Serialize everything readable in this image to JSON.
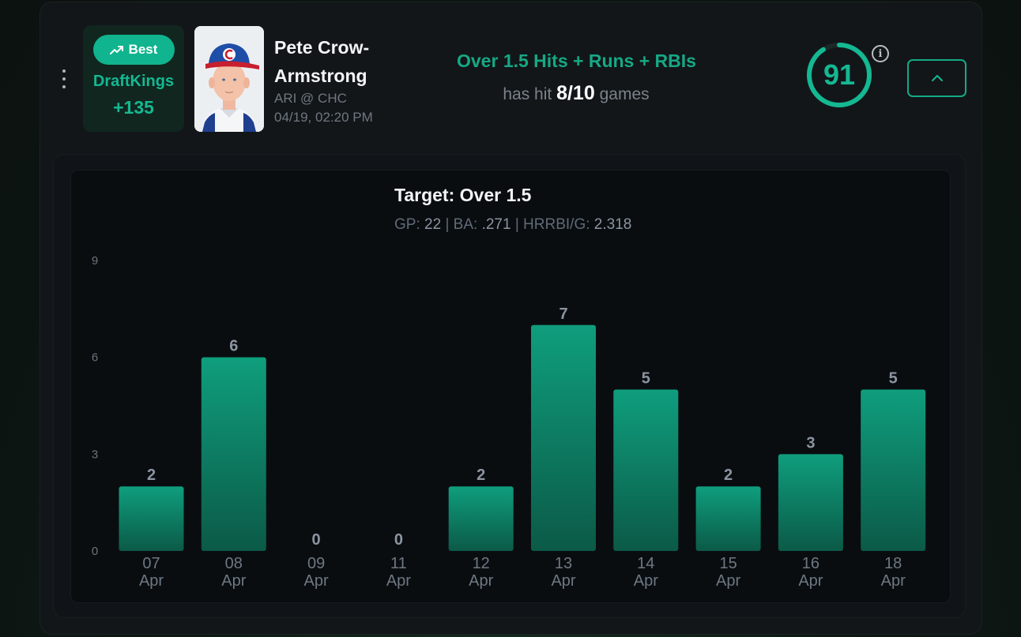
{
  "menu_icon": "vertical-dots-icon",
  "book": {
    "badge_label": "Best",
    "badge_icon": "trending-up-icon",
    "name": "DraftKings",
    "odds": "+135"
  },
  "player": {
    "name": "Pete Crow-Armstrong",
    "matchup": "ARI @ CHC",
    "datetime": "04/19, 02:20 PM"
  },
  "prop": {
    "title": "Over 1.5 Hits + Runs + RBIs",
    "hit_prefix": "has hit",
    "hit_value": "8/10",
    "hit_suffix": "games"
  },
  "score": {
    "value": "91",
    "fraction": 0.91,
    "color": "#14b892"
  },
  "info_icon": "info-icon",
  "collapse_icon": "chevron-up-icon",
  "chart_title": "Target: Over 1.5",
  "chart_stats": {
    "gp_label": "GP:",
    "gp_value": "22",
    "ba_label": "BA:",
    "ba_value": ".271",
    "hrrbi_label": "HRRBI/G:",
    "hrrbi_value": "2.318",
    "separator": "|"
  },
  "colors": {
    "accent": "#14b892",
    "bar_top": "#0f9e7d",
    "bar_bottom": "#0b5a47"
  },
  "chart_data": {
    "type": "bar",
    "categories": [
      [
        "07",
        "Apr"
      ],
      [
        "08",
        "Apr"
      ],
      [
        "09",
        "Apr"
      ],
      [
        "11",
        "Apr"
      ],
      [
        "12",
        "Apr"
      ],
      [
        "13",
        "Apr"
      ],
      [
        "14",
        "Apr"
      ],
      [
        "15",
        "Apr"
      ],
      [
        "16",
        "Apr"
      ],
      [
        "18",
        "Apr"
      ]
    ],
    "values": [
      2,
      6,
      0,
      0,
      2,
      7,
      5,
      2,
      3,
      5
    ],
    "yticks": [
      0,
      3,
      6,
      9
    ],
    "ylim": [
      0,
      9
    ],
    "grid": false,
    "data_labels": true
  }
}
